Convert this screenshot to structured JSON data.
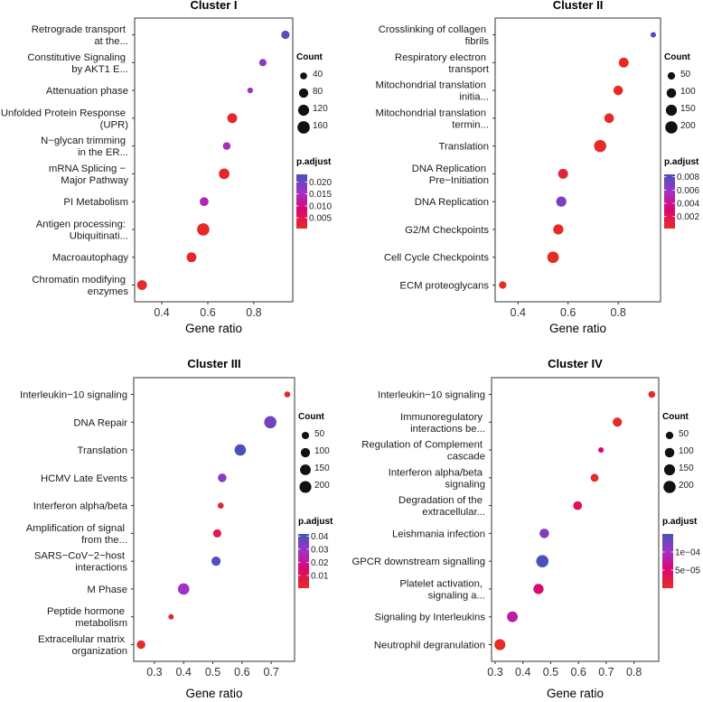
{
  "chart_data": [
    {
      "type": "scatter",
      "title": "Cluster I",
      "xlabel": "Gene ratio",
      "xlim": [
        0.282,
        0.969
      ],
      "xticks": [
        0.4,
        0.6,
        0.8
      ],
      "xtick_labels": [
        "0.4",
        "0.6",
        "0.8"
      ],
      "categories": [
        [
          "Retrograde transport",
          "at the..."
        ],
        [
          "Constitutive Signaling",
          "by AKT1 E..."
        ],
        [
          "Attenuation phase"
        ],
        [
          "Unfolded Protein Response",
          "(UPR)"
        ],
        [
          "N−glycan trimming",
          "in the ER..."
        ],
        [
          "mRNA Splicing −",
          "Major Pathway"
        ],
        [
          "PI Metabolism"
        ],
        [
          "Antigen processing:",
          "Ubiquitinati..."
        ],
        [
          "Macroautophagy"
        ],
        [
          "Chromatin modifying",
          "enzymes"
        ]
      ],
      "gene_ratio": [
        0.937,
        0.839,
        0.784,
        0.706,
        0.682,
        0.671,
        0.584,
        0.58,
        0.529,
        0.314
      ],
      "count": [
        60,
        45,
        30,
        90,
        50,
        110,
        70,
        160,
        90,
        90
      ],
      "p_adjust": [
        0.022,
        0.018,
        0.017,
        0.002,
        0.015,
        0.002,
        0.014,
        0.001,
        0.002,
        0.001
      ],
      "size_legend": {
        "title": "Count",
        "values": [
          40,
          80,
          120,
          160
        ],
        "labels": [
          "40",
          "80",
          "120",
          "160"
        ],
        "domain": [
          25,
          165
        ]
      },
      "color_legend": {
        "title": "p.adjust",
        "range": [
          0.0005,
          0.0232
        ],
        "ticks": [
          0.02,
          0.015,
          0.01,
          0.005
        ],
        "labels": [
          "0.020",
          "0.015",
          "0.010",
          "0.005"
        ]
      }
    },
    {
      "type": "scatter",
      "title": "Cluster II",
      "xlabel": "Gene ratio",
      "xlim": [
        0.309,
        0.969
      ],
      "xticks": [
        0.4,
        0.6,
        0.8
      ],
      "xtick_labels": [
        "0.4",
        "0.6",
        "0.8"
      ],
      "categories": [
        [
          "Crosslinking of collagen",
          "fibrils"
        ],
        [
          "Respiratory electron",
          "transport"
        ],
        [
          "Mitochondrial translation",
          "initia..."
        ],
        [
          "Mitochondrial translation",
          "termin..."
        ],
        [
          "Translation"
        ],
        [
          "DNA Replication",
          "Pre−Initiation"
        ],
        [
          "DNA Replication"
        ],
        [
          "G2/M Checkpoints"
        ],
        [
          "Cell Cycle Checkpoints"
        ],
        [
          "ECM proteoglycans"
        ]
      ],
      "gene_ratio": [
        0.94,
        0.822,
        0.8,
        0.764,
        0.728,
        0.58,
        0.573,
        0.561,
        0.54,
        0.339
      ],
      "count": [
        25,
        110,
        100,
        100,
        200,
        110,
        120,
        120,
        170,
        50
      ],
      "p_adjust": [
        0.0082,
        0.0003,
        0.0003,
        0.0003,
        0.0003,
        0.001,
        0.007,
        0.0003,
        0.0002,
        0.0002
      ],
      "size_legend": {
        "title": "Count",
        "values": [
          50,
          100,
          150,
          200
        ],
        "labels": [
          "50",
          "100",
          "150",
          "200"
        ],
        "domain": [
          20,
          210
        ]
      },
      "color_legend": {
        "title": "p.adjust",
        "range": [
          0.00018,
          0.00836
        ],
        "ticks": [
          0.008,
          0.006,
          0.004,
          0.002
        ],
        "labels": [
          "0.008",
          "0.006",
          "0.004",
          "0.002"
        ]
      }
    },
    {
      "type": "scatter",
      "title": "Cluster III",
      "xlabel": "Gene ratio",
      "xlim": [
        0.229,
        0.78
      ],
      "xticks": [
        0.3,
        0.4,
        0.5,
        0.6,
        0.7
      ],
      "xtick_labels": [
        "0.3",
        "0.4",
        "0.5",
        "0.6",
        "0.7"
      ],
      "categories": [
        [
          "Interleukin−10 signaling"
        ],
        [
          "DNA Repair"
        ],
        [
          "Translation"
        ],
        [
          "HCMV Late Events"
        ],
        [
          "Interferon alpha/beta"
        ],
        [
          "Amplification of signal",
          "from the..."
        ],
        [
          "SARS−CoV−2−host",
          "interactions"
        ],
        [
          "M Phase"
        ],
        [
          "Peptide hormone",
          "metabolism"
        ],
        [
          "Extracellular matrix",
          "organization"
        ]
      ],
      "gene_ratio": [
        0.755,
        0.697,
        0.594,
        0.532,
        0.527,
        0.515,
        0.511,
        0.4,
        0.357,
        0.254
      ],
      "count": [
        30,
        220,
        180,
        80,
        30,
        70,
        100,
        180,
        25,
        80
      ],
      "p_adjust": [
        0.001,
        0.035,
        0.042,
        0.033,
        0.003,
        0.008,
        0.04,
        0.028,
        0.002,
        0.001
      ],
      "size_legend": {
        "title": "Count",
        "values": [
          50,
          100,
          150,
          200
        ],
        "labels": [
          "50",
          "100",
          "150",
          "200"
        ],
        "domain": [
          20,
          230
        ]
      },
      "color_legend": {
        "title": "p.adjust",
        "range": [
          0.0003,
          0.0416
        ],
        "ticks": [
          0.04,
          0.03,
          0.02,
          0.01
        ],
        "labels": [
          "0.04",
          "0.03",
          "0.02",
          "0.01"
        ]
      }
    },
    {
      "type": "scatter",
      "title": "Cluster IV",
      "xlabel": "Gene ratio",
      "xlim": [
        0.287,
        0.889
      ],
      "xticks": [
        0.3,
        0.4,
        0.5,
        0.6,
        0.7,
        0.8
      ],
      "xtick_labels": [
        "0.3",
        "0.4",
        "0.5",
        "0.6",
        "0.7",
        "0.8"
      ],
      "categories": [
        [
          "Interleukin−10 signaling"
        ],
        [
          "Immunoregulatory",
          "interactions be..."
        ],
        [
          "Regulation of Complement",
          "cascade"
        ],
        [
          "Interferon alpha/beta",
          "signaling"
        ],
        [
          "Degradation of the",
          "extracellular..."
        ],
        [
          "Leishmania infection"
        ],
        [
          "GPCR downstream signalling"
        ],
        [
          "Platelet activation,",
          "signaling a..."
        ],
        [
          "Signaling by Interleukins"
        ],
        [
          "Neutrophil degranulation"
        ]
      ],
      "gene_ratio": [
        0.864,
        0.74,
        0.681,
        0.658,
        0.597,
        0.477,
        0.47,
        0.456,
        0.362,
        0.317
      ],
      "count": [
        40,
        90,
        25,
        60,
        80,
        100,
        200,
        120,
        140,
        150
      ],
      "p_adjust": [
        2e-06,
        2e-06,
        5e-05,
        3e-06,
        3.5e-05,
        0.00012,
        0.00015,
        5e-05,
        8e-05,
        2e-06
      ],
      "size_legend": {
        "title": "Count",
        "values": [
          50,
          100,
          150,
          200
        ],
        "labels": [
          "50",
          "100",
          "150",
          "200"
        ],
        "domain": [
          20,
          210
        ]
      },
      "color_legend": {
        "title": "p.adjust",
        "range": [
          0.0,
          0.00015
        ],
        "ticks": [
          0.0001,
          5e-05
        ],
        "labels": [
          "1e−04",
          "5e−05"
        ]
      }
    }
  ]
}
